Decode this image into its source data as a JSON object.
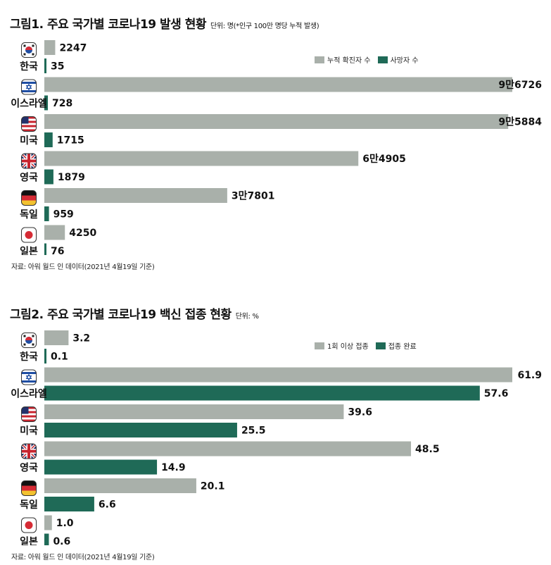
{
  "colors": {
    "bar_primary": "#a9b0aa",
    "bar_secondary": "#1f6a57"
  },
  "chart_data": [
    {
      "type": "bar",
      "title": "그림1. 주요 국가별 코로나19 발생 현황",
      "unit_note": "단위: 명(*인구 100만 명당 누적 발생)",
      "categories": [
        "한국",
        "이스라엘",
        "미국",
        "영국",
        "독일",
        "일본"
      ],
      "flag_icons": [
        "south-korea-flag-icon",
        "israel-flag-icon",
        "usa-flag-icon",
        "uk-flag-icon",
        "germany-flag-icon",
        "japan-flag-icon"
      ],
      "series": [
        {
          "name": "누적 확진자 수",
          "values": [
            2247,
            96726,
            95884,
            64905,
            37801,
            4250
          ],
          "labels": [
            "2247",
            "9만6726",
            "9만5884",
            "6만4905",
            "3만7801",
            "4250"
          ]
        },
        {
          "name": "사망자 수",
          "values": [
            35,
            728,
            1715,
            1879,
            959,
            76
          ],
          "labels": [
            "35",
            "728",
            "1715",
            "1879",
            "959",
            "76"
          ]
        }
      ],
      "legend_position": "top-right",
      "source": "자료: 아워 월드 인 데이터(2021년 4월19일 기준)"
    },
    {
      "type": "bar",
      "title": "그림2. 주요 국가별 코로나19 백신 접종 현황",
      "unit_note": "단위: %",
      "categories": [
        "한국",
        "이스라엘",
        "미국",
        "영국",
        "독일",
        "일본"
      ],
      "flag_icons": [
        "south-korea-flag-icon",
        "israel-flag-icon",
        "usa-flag-icon",
        "uk-flag-icon",
        "germany-flag-icon",
        "japan-flag-icon"
      ],
      "series": [
        {
          "name": "1회 이상 접종",
          "values": [
            3.2,
            61.9,
            39.6,
            48.5,
            20.1,
            1.0
          ],
          "labels": [
            "3.2",
            "61.9",
            "39.6",
            "48.5",
            "20.1",
            "1.0"
          ]
        },
        {
          "name": "접종 완료",
          "values": [
            0.1,
            57.6,
            25.5,
            14.9,
            6.6,
            0.6
          ],
          "labels": [
            "0.1",
            "57.6",
            "25.5",
            "14.9",
            "6.6",
            "0.6"
          ]
        }
      ],
      "legend_position": "top-right",
      "source": "자료: 아워 월드 인 데이터(2021년 4월19일 기준)"
    }
  ]
}
